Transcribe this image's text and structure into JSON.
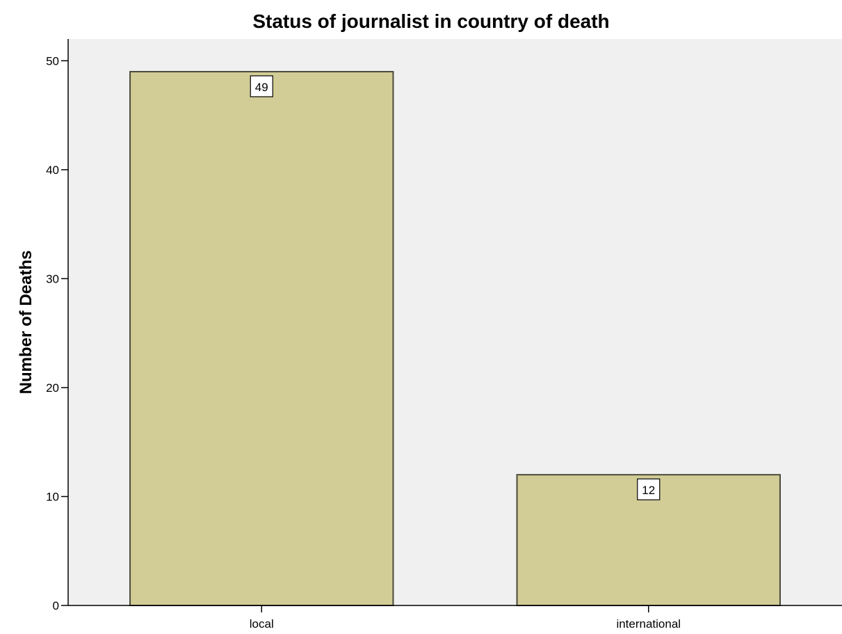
{
  "chart_data": {
    "type": "bar",
    "title": "Status of journalist in country of death",
    "xlabel": "",
    "ylabel": "Number of Deaths",
    "categories": [
      "local",
      "international"
    ],
    "values": [
      49,
      12
    ],
    "data_labels": [
      "49",
      "12"
    ],
    "ylim": [
      0,
      52
    ],
    "yticks": [
      0,
      10,
      20,
      30,
      40,
      50
    ],
    "ytick_labels": [
      "0",
      "10",
      "20",
      "30",
      "40",
      "50"
    ],
    "grid": false,
    "legend": "none",
    "colors": {
      "bar_fill": "#d2cc96",
      "bar_stroke": "#4a4a3a",
      "plot_background": "#f0f0f0",
      "axis": "#000000"
    }
  }
}
